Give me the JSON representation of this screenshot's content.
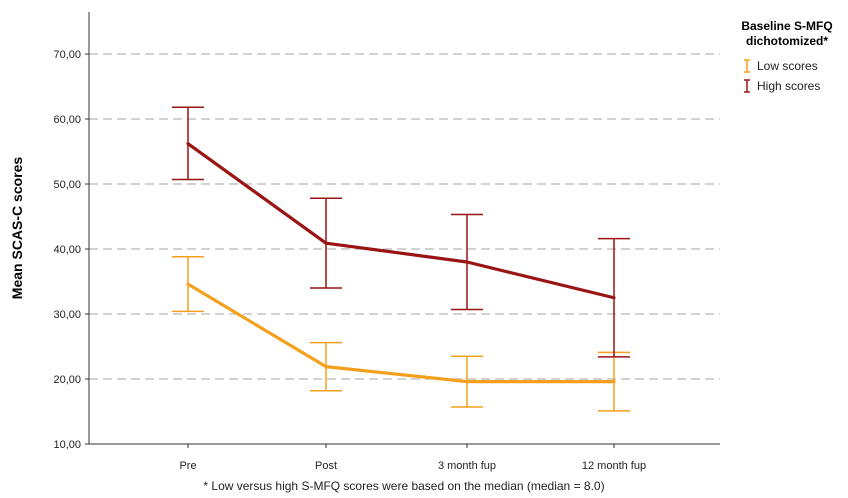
{
  "chart_data": {
    "type": "line",
    "categories": [
      "Pre",
      "Post",
      "3 month fup",
      "12 month fup"
    ],
    "ylabel": "Mean SCAS-C scores",
    "xlabel": "",
    "ylim": [
      10,
      75
    ],
    "yticks": [
      10,
      20,
      30,
      40,
      50,
      60,
      70
    ],
    "ytick_labels": [
      "10,00",
      "20,00",
      "30,00",
      "40,00",
      "50,00",
      "60,00",
      "70,00"
    ],
    "grid": "horizontal dashed",
    "error_bars": true,
    "series": [
      {
        "name": "Low scores",
        "color": "#f5a01d",
        "values": [
          34.6,
          21.9,
          19.6,
          19.6
        ],
        "upper": [
          38.8,
          25.6,
          23.5,
          24.1
        ],
        "lower": [
          30.4,
          18.2,
          15.7,
          15.1
        ]
      },
      {
        "name": "High scores",
        "color": "#9a1414",
        "values": [
          56.2,
          40.9,
          38.0,
          32.5
        ],
        "upper": [
          61.8,
          47.8,
          45.3,
          41.6
        ],
        "lower": [
          50.7,
          34.0,
          30.7,
          23.4
        ]
      }
    ],
    "legend": {
      "title_line1": "Baseline S-MFQ",
      "title_line2": "dichotomized*",
      "position": "top-right"
    },
    "footnote": "* Low versus high S-MFQ scores were based on the median (median = 8.0)"
  }
}
